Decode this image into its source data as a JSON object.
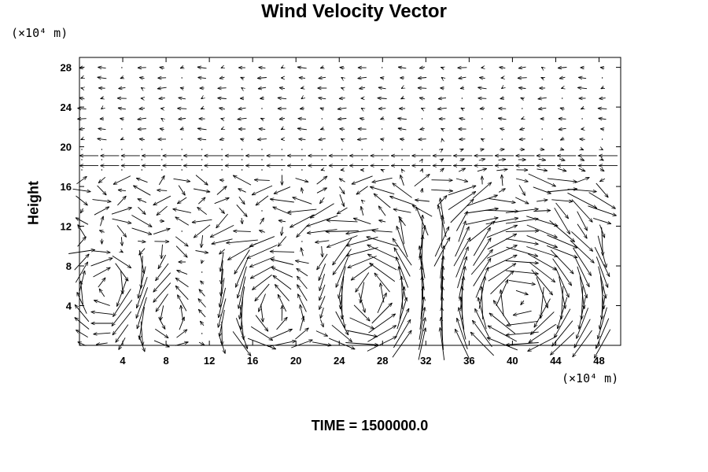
{
  "chart_data": {
    "type": "vector-field",
    "title": "Wind Velocity Vector",
    "ylabel": "Height",
    "y_unit_label": "(×10⁴ m)",
    "x_unit_label": "(×10⁴ m)",
    "footer": "TIME = 1500000.0",
    "xlim": [
      0,
      50
    ],
    "ylim": [
      0,
      29
    ],
    "x_ticks": [
      4,
      8,
      12,
      16,
      20,
      24,
      28,
      32,
      36,
      40,
      44,
      48
    ],
    "y_ticks": [
      4,
      8,
      12,
      16,
      20,
      24,
      28
    ],
    "grid": false,
    "vortices": [
      {
        "x": 3.5,
        "y": 5.5,
        "radius": 3.0,
        "sense": "cw"
      },
      {
        "x": 8.0,
        "y": 4.0,
        "radius": 3.0,
        "sense": "ccw"
      },
      {
        "x": 12.5,
        "y": 4.5,
        "radius": 3.0,
        "sense": "cw"
      },
      {
        "x": 17.0,
        "y": 4.0,
        "radius": 4.0,
        "sense": "ccw"
      },
      {
        "x": 22.0,
        "y": 5.0,
        "radius": 3.0,
        "sense": "cw"
      },
      {
        "x": 27.0,
        "y": 5.0,
        "radius": 4.5,
        "sense": "ccw"
      },
      {
        "x": 40.5,
        "y": 4.5,
        "radius": 5.5,
        "sense": "cw"
      }
    ],
    "jets": [
      {
        "y": 19.1,
        "direction": "westward"
      },
      {
        "y": 18.1,
        "direction": "westward"
      }
    ],
    "flow_layers": [
      {
        "y_min": 9,
        "y_max": 17,
        "direction": "mixed"
      },
      {
        "y_min": 20,
        "y_max": 29,
        "direction": "weak westward"
      }
    ]
  }
}
